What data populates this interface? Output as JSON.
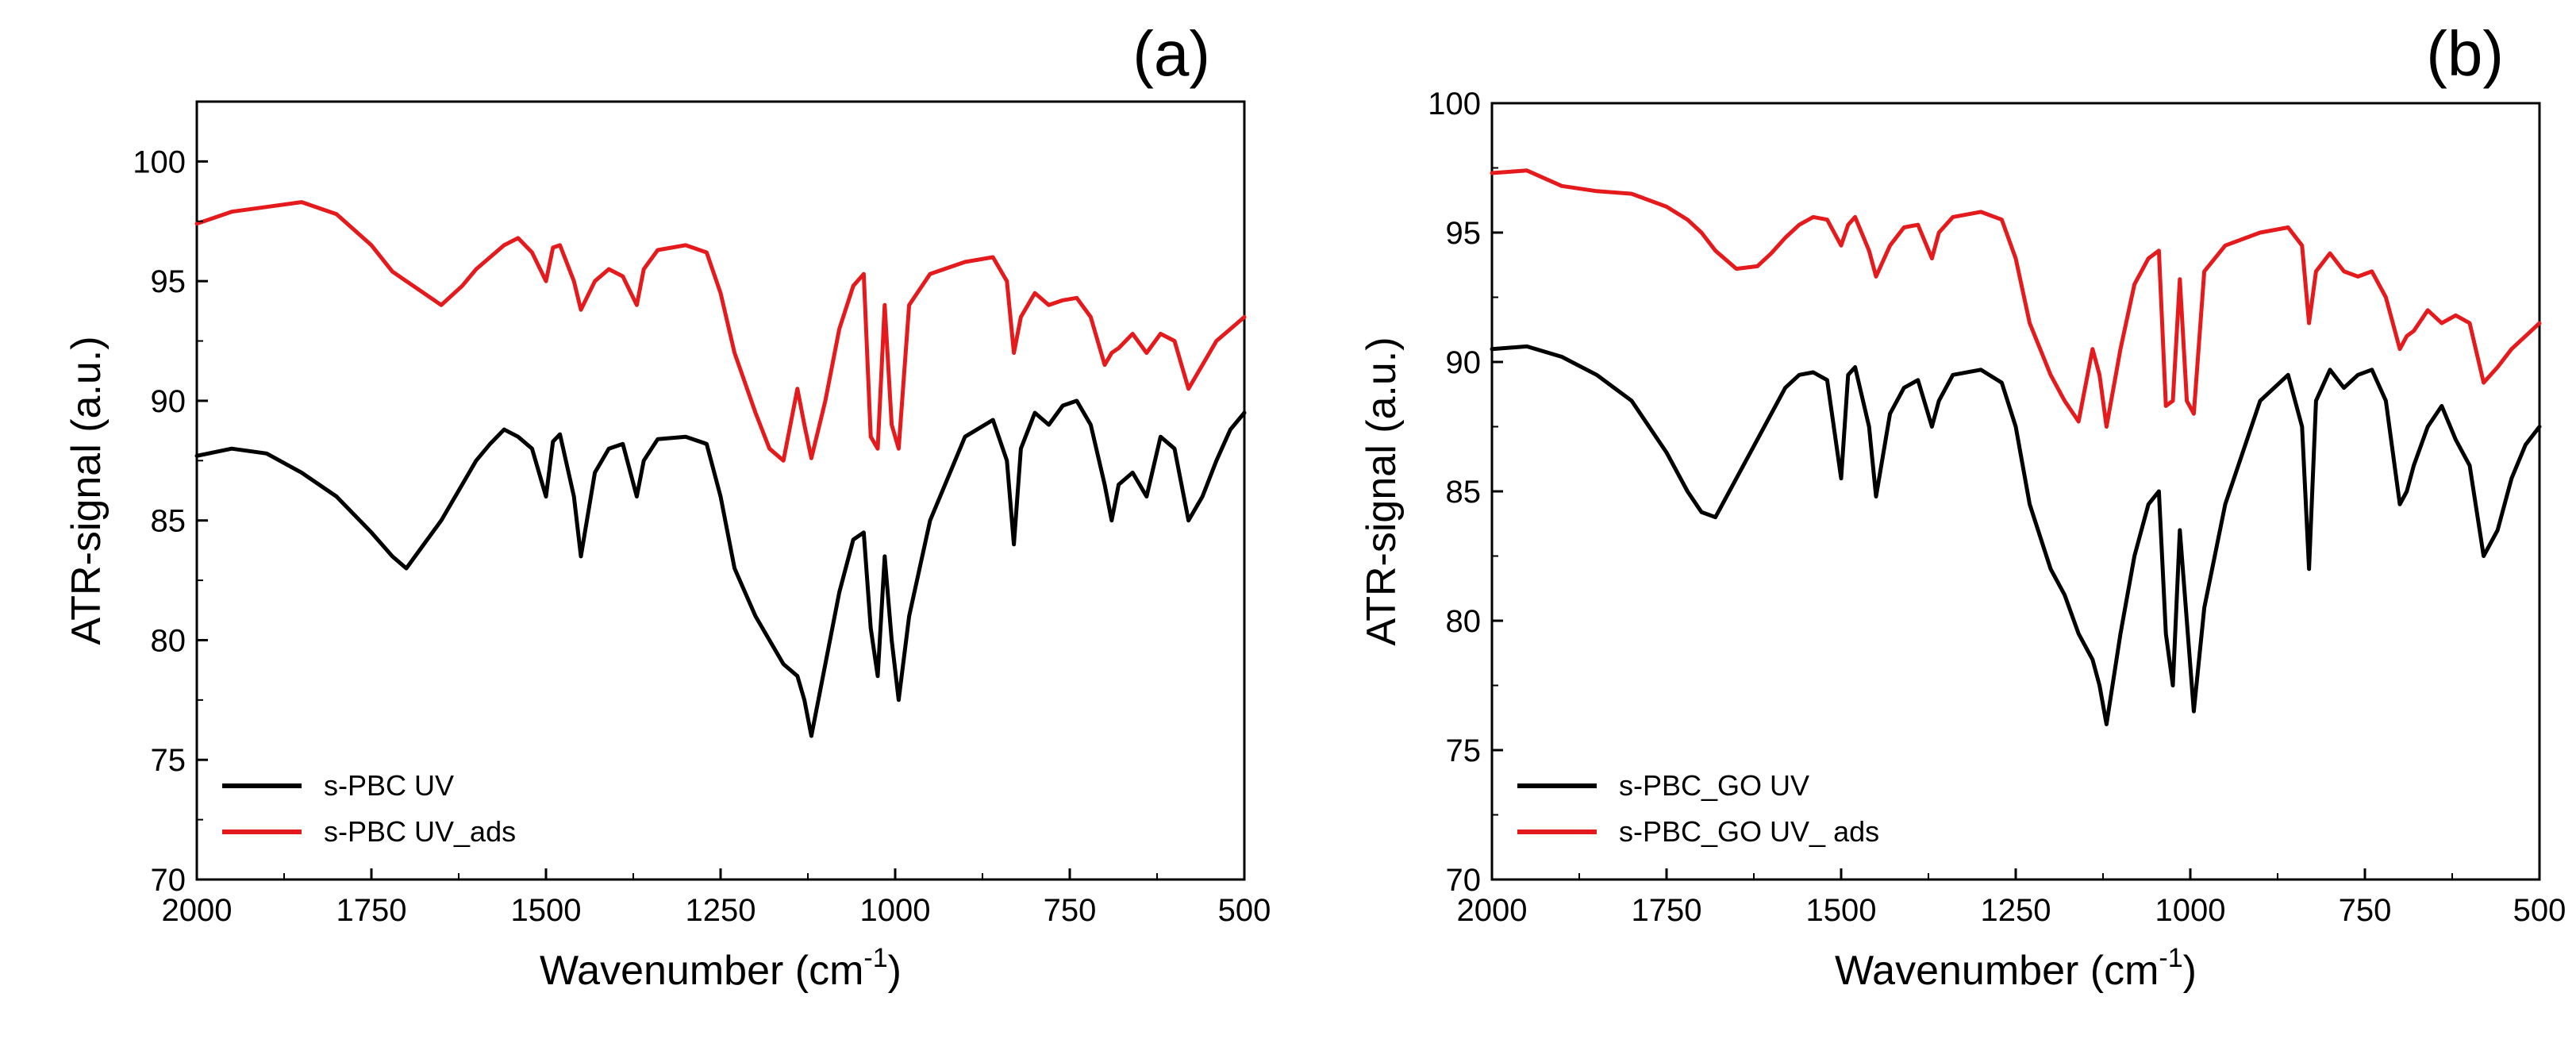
{
  "chart_data": [
    {
      "type": "line",
      "panel_label": "(a)",
      "xlabel": "Wavenumber (cm",
      "xlabel_sup": "-1",
      "xlabel_close": ")",
      "ylabel": "ATR-signal (a.u.)",
      "xlim": [
        2000,
        500
      ],
      "ylim": [
        70,
        102.5
      ],
      "xticks": [
        2000,
        1750,
        1500,
        1250,
        1000,
        750,
        500
      ],
      "yticks": [
        70,
        75,
        80,
        85,
        90,
        95,
        100
      ],
      "grid": false,
      "legend_position": "bottom-left",
      "series": [
        {
          "name": "s-PBC UV",
          "color": "#000000",
          "x": [
            2000,
            1950,
            1900,
            1850,
            1800,
            1750,
            1720,
            1700,
            1680,
            1650,
            1620,
            1600,
            1580,
            1560,
            1540,
            1520,
            1500,
            1490,
            1480,
            1460,
            1450,
            1430,
            1410,
            1390,
            1370,
            1360,
            1340,
            1300,
            1270,
            1250,
            1230,
            1200,
            1180,
            1160,
            1140,
            1130,
            1120,
            1100,
            1080,
            1060,
            1045,
            1035,
            1025,
            1015,
            1005,
            995,
            980,
            950,
            900,
            860,
            840,
            830,
            820,
            800,
            780,
            760,
            740,
            720,
            700,
            690,
            680,
            660,
            640,
            620,
            600,
            580,
            560,
            540,
            520,
            500
          ],
          "values": [
            87.7,
            88.0,
            87.8,
            87.0,
            86.0,
            84.5,
            83.5,
            83.0,
            83.8,
            85.0,
            86.5,
            87.5,
            88.2,
            88.8,
            88.5,
            88.0,
            86.0,
            88.3,
            88.6,
            86.0,
            83.5,
            87.0,
            88.0,
            88.2,
            86.0,
            87.5,
            88.4,
            88.5,
            88.2,
            86.0,
            83.0,
            81.0,
            80.0,
            79.0,
            78.5,
            77.5,
            76.0,
            79.0,
            82.0,
            84.2,
            84.5,
            80.5,
            78.5,
            83.5,
            80.0,
            77.5,
            81.0,
            85.0,
            88.5,
            89.2,
            87.5,
            84.0,
            88.0,
            89.5,
            89.0,
            89.8,
            90.0,
            89.0,
            86.5,
            85.0,
            86.5,
            87.0,
            86.0,
            88.5,
            88.0,
            85.0,
            86.0,
            87.5,
            88.8,
            89.5
          ]
        },
        {
          "name": "s-PBC UV_ads",
          "color": "#e41a1c",
          "x": [
            2000,
            1950,
            1900,
            1850,
            1800,
            1750,
            1720,
            1700,
            1680,
            1650,
            1620,
            1600,
            1580,
            1560,
            1540,
            1520,
            1500,
            1490,
            1480,
            1460,
            1450,
            1430,
            1410,
            1390,
            1370,
            1360,
            1340,
            1300,
            1270,
            1250,
            1230,
            1200,
            1180,
            1160,
            1140,
            1130,
            1120,
            1100,
            1080,
            1060,
            1045,
            1035,
            1025,
            1015,
            1005,
            995,
            980,
            950,
            900,
            860,
            840,
            830,
            820,
            800,
            780,
            760,
            740,
            720,
            700,
            690,
            680,
            660,
            640,
            620,
            600,
            580,
            560,
            540,
            520,
            500
          ],
          "values": [
            97.4,
            97.9,
            98.1,
            98.3,
            97.8,
            96.5,
            95.4,
            95.0,
            94.6,
            94.0,
            94.8,
            95.5,
            96.0,
            96.5,
            96.8,
            96.2,
            95.0,
            96.4,
            96.5,
            95.0,
            93.8,
            95.0,
            95.5,
            95.2,
            94.0,
            95.5,
            96.3,
            96.5,
            96.2,
            94.5,
            92.0,
            89.5,
            88.0,
            87.5,
            90.5,
            89.0,
            87.6,
            90.0,
            93.0,
            94.8,
            95.3,
            88.5,
            88.0,
            94.0,
            89.0,
            88.0,
            94.0,
            95.3,
            95.8,
            96.0,
            95.0,
            92.0,
            93.5,
            94.5,
            94.0,
            94.2,
            94.3,
            93.5,
            91.5,
            92.0,
            92.2,
            92.8,
            92.0,
            92.8,
            92.5,
            90.5,
            91.5,
            92.5,
            93.0,
            93.5
          ]
        }
      ]
    },
    {
      "type": "line",
      "panel_label": "(b)",
      "xlabel": "Wavenumber (cm",
      "xlabel_sup": "-1",
      "xlabel_close": ")",
      "ylabel": "ATR-signal (a.u.)",
      "xlim": [
        2000,
        500
      ],
      "ylim": [
        70,
        100
      ],
      "xticks": [
        2000,
        1750,
        1500,
        1250,
        1000,
        750,
        500
      ],
      "yticks": [
        70,
        75,
        80,
        85,
        90,
        95,
        100
      ],
      "grid": false,
      "legend_position": "bottom-left",
      "series": [
        {
          "name": "s-PBC_GO UV",
          "color": "#000000",
          "x": [
            2000,
            1950,
            1900,
            1850,
            1800,
            1750,
            1720,
            1700,
            1680,
            1650,
            1620,
            1600,
            1580,
            1560,
            1540,
            1520,
            1500,
            1490,
            1480,
            1460,
            1450,
            1430,
            1410,
            1390,
            1370,
            1360,
            1340,
            1300,
            1270,
            1250,
            1230,
            1200,
            1180,
            1160,
            1140,
            1130,
            1120,
            1100,
            1080,
            1060,
            1045,
            1035,
            1025,
            1015,
            1005,
            995,
            980,
            950,
            900,
            860,
            840,
            830,
            820,
            800,
            780,
            760,
            740,
            720,
            700,
            690,
            680,
            660,
            640,
            620,
            600,
            580,
            560,
            540,
            520,
            500
          ],
          "values": [
            90.5,
            90.6,
            90.2,
            89.5,
            88.5,
            86.5,
            85.0,
            84.2,
            84.0,
            85.5,
            87.0,
            88.0,
            89.0,
            89.5,
            89.6,
            89.3,
            85.5,
            89.5,
            89.8,
            87.5,
            84.8,
            88.0,
            89.0,
            89.3,
            87.5,
            88.5,
            89.5,
            89.7,
            89.2,
            87.5,
            84.5,
            82.0,
            81.0,
            79.5,
            78.5,
            77.5,
            76.0,
            79.5,
            82.5,
            84.5,
            85.0,
            79.5,
            77.5,
            83.5,
            80.0,
            76.5,
            80.5,
            84.5,
            88.5,
            89.5,
            87.5,
            82.0,
            88.5,
            89.7,
            89.0,
            89.5,
            89.7,
            88.5,
            84.5,
            85.0,
            86.0,
            87.5,
            88.3,
            87.0,
            86.0,
            82.5,
            83.5,
            85.5,
            86.8,
            87.5
          ]
        },
        {
          "name": "s-PBC_GO UV_ ads",
          "color": "#e41a1c",
          "x": [
            2000,
            1950,
            1900,
            1850,
            1800,
            1750,
            1720,
            1700,
            1680,
            1650,
            1620,
            1600,
            1580,
            1560,
            1540,
            1520,
            1500,
            1490,
            1480,
            1460,
            1450,
            1430,
            1410,
            1390,
            1370,
            1360,
            1340,
            1300,
            1270,
            1250,
            1230,
            1200,
            1180,
            1160,
            1140,
            1130,
            1120,
            1100,
            1080,
            1060,
            1045,
            1035,
            1025,
            1015,
            1005,
            995,
            980,
            950,
            900,
            860,
            840,
            830,
            820,
            800,
            780,
            760,
            740,
            720,
            700,
            690,
            680,
            660,
            640,
            620,
            600,
            580,
            560,
            540,
            520,
            500
          ],
          "values": [
            97.3,
            97.4,
            96.8,
            96.6,
            96.5,
            96.0,
            95.5,
            95.0,
            94.3,
            93.6,
            93.7,
            94.2,
            94.8,
            95.3,
            95.6,
            95.5,
            94.5,
            95.3,
            95.6,
            94.3,
            93.3,
            94.5,
            95.2,
            95.3,
            94.0,
            95.0,
            95.6,
            95.8,
            95.5,
            94.0,
            91.5,
            89.5,
            88.5,
            87.7,
            90.5,
            89.5,
            87.5,
            90.5,
            93.0,
            94.0,
            94.3,
            88.3,
            88.5,
            93.2,
            88.5,
            88.0,
            93.5,
            94.5,
            95.0,
            95.2,
            94.5,
            91.5,
            93.5,
            94.2,
            93.5,
            93.3,
            93.5,
            92.5,
            90.5,
            91.0,
            91.2,
            92.0,
            91.5,
            91.8,
            91.5,
            89.2,
            89.8,
            90.5,
            91.0,
            91.5
          ]
        }
      ]
    }
  ]
}
